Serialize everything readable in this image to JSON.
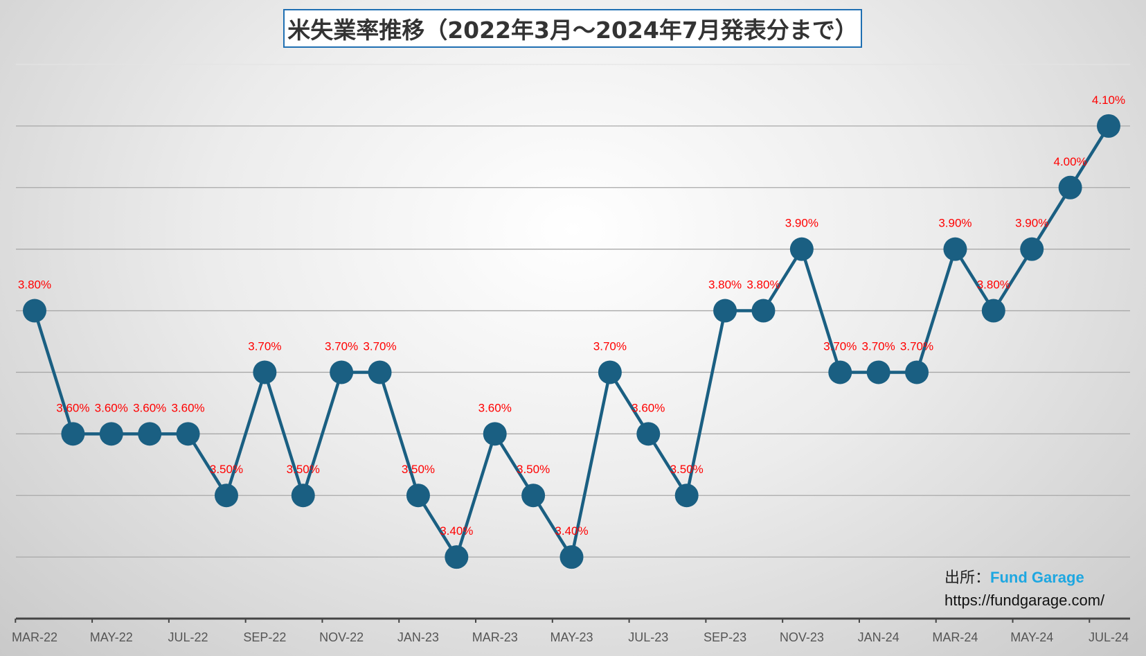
{
  "chart_data": {
    "type": "line",
    "title": "米失業率推移（2022年3月～2024年7月発表分まで）",
    "xlabel": "",
    "ylabel": "",
    "x": [
      "MAR-22",
      "APR-22",
      "MAY-22",
      "JUN-22",
      "JUL-22",
      "AUG-22",
      "SEP-22",
      "OCT-22",
      "NOV-22",
      "DEC-22",
      "JAN-23",
      "FEB-23",
      "MAR-23",
      "APR-23",
      "MAY-23",
      "JUN-23",
      "JUL-23",
      "AUG-23",
      "SEP-23",
      "OCT-23",
      "NOV-23",
      "DEC-23",
      "JAN-24",
      "FEB-24",
      "MAR-24",
      "APR-24",
      "MAY-24",
      "JUN-24",
      "JUL-24"
    ],
    "tick_labels": [
      "MAR-22",
      "MAY-22",
      "JUL-22",
      "SEP-22",
      "NOV-22",
      "JAN-23",
      "MAR-23",
      "MAY-23",
      "JUL-23",
      "SEP-23",
      "NOV-23",
      "JAN-24",
      "MAR-24",
      "MAY-24",
      "JUL-24"
    ],
    "values": [
      3.8,
      3.6,
      3.6,
      3.6,
      3.6,
      3.5,
      3.7,
      3.5,
      3.7,
      3.7,
      3.5,
      3.4,
      3.6,
      3.5,
      3.4,
      3.7,
      3.6,
      3.5,
      3.8,
      3.8,
      3.9,
      3.7,
      3.7,
      3.7,
      3.9,
      3.8,
      3.9,
      4.0,
      4.1
    ],
    "data_labels": [
      "3.80%",
      "3.60%",
      "3.60%",
      "3.60%",
      "3.60%",
      "3.50%",
      "3.70%",
      "3.50%",
      "3.70%",
      "3.70%",
      "3.50%",
      "3.40%",
      "3.60%",
      "3.50%",
      "3.40%",
      "3.70%",
      "3.60%",
      "3.50%",
      "3.80%",
      "3.80%",
      "3.90%",
      "3.70%",
      "3.70%",
      "3.70%",
      "3.90%",
      "3.80%",
      "3.90%",
      "4.00%",
      "4.10%"
    ],
    "ylim": [
      3.3,
      4.2
    ],
    "grid": true,
    "line_color": "#1a5f82",
    "label_color": "#ff0000"
  },
  "source": {
    "label": "出所：",
    "name": "Fund Garage",
    "url": "https://fundgarage.com/"
  }
}
